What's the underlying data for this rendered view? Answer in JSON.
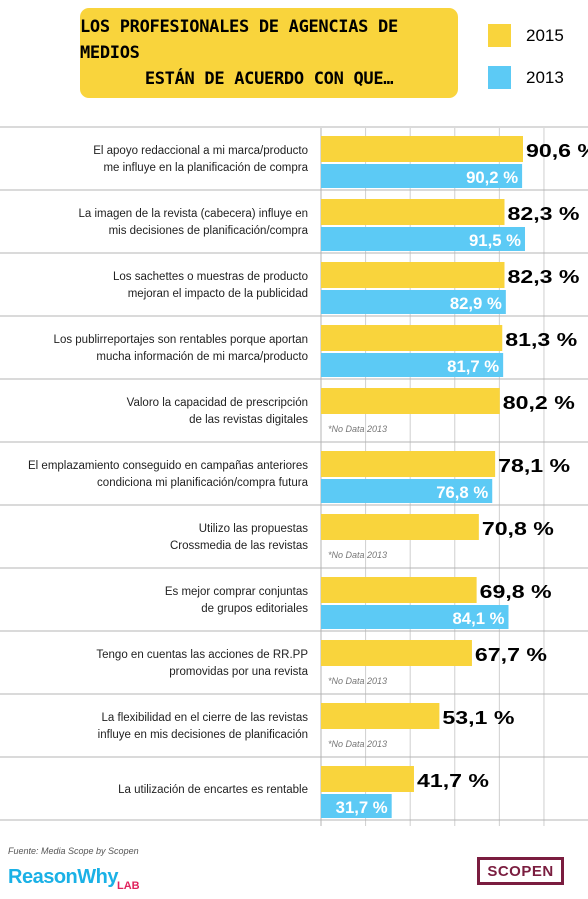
{
  "title": [
    "LOS PROFESIONALES DE AGENCIAS DE MEDIOS",
    "ESTÁN DE ACUERDO CON QUE…"
  ],
  "legend": [
    {
      "label": "2015",
      "color": "#f9d43c"
    },
    {
      "label": "2013",
      "color": "#5ccaf5"
    }
  ],
  "colors": {
    "bar_2015": "#f9d43c",
    "bar_2013": "#5ccaf5",
    "separator": "#b4b4b4",
    "grid": "#cfcfcf"
  },
  "chart_data": {
    "type": "bar",
    "orientation": "horizontal",
    "categories": [
      [
        "El apoyo redaccional a mi marca/producto",
        "me influye en la planificación de compra"
      ],
      [
        "La imagen de la revista (cabecera) influye en",
        "mis decisiones de planificación/compra"
      ],
      [
        "Los sachettes o muestras de producto",
        "mejoran el impacto de la publicidad"
      ],
      [
        "Los publirreportajes son rentables porque aportan",
        "mucha información de mi marca/producto"
      ],
      [
        "Valoro la capacidad de prescripción",
        "de las revistas digitales"
      ],
      [
        "El emplazamiento conseguido en campañas anteriores",
        "condiciona mi planificación/compra futura"
      ],
      [
        "Utilizo las propuestas",
        "Crossmedia de las revistas"
      ],
      [
        "Es mejor comprar conjuntas",
        "de grupos editoriales"
      ],
      [
        "Tengo en cuentas las acciones de RR.PP",
        "promovidas por una revista"
      ],
      [
        "La flexibilidad en el cierre de las revistas",
        "influye en mis decisiones de planificación"
      ],
      [
        "La utilización de encartes es rentable"
      ]
    ],
    "series": [
      {
        "name": "2015",
        "values": [
          90.6,
          82.3,
          82.3,
          81.3,
          80.2,
          78.1,
          70.8,
          69.8,
          67.7,
          53.1,
          41.7
        ],
        "labels": [
          "90,6 %",
          "82,3 %",
          "82,3 %",
          "81,3 %",
          "80,2 %",
          "78,1 %",
          "70,8 %",
          "69,8 %",
          "67,7 %",
          "53,1 %",
          "41,7 %"
        ]
      },
      {
        "name": "2013",
        "values": [
          90.2,
          91.5,
          82.9,
          81.7,
          null,
          76.8,
          null,
          84.1,
          null,
          null,
          31.7
        ],
        "labels": [
          "90,2 %",
          "91,5 %",
          "82,9 %",
          "81,7 %",
          "*No Data 2013",
          "76,8 %",
          "*No Data 2013",
          "84,1 %",
          "*No Data 2013",
          "*No Data 2013",
          "31,7 %"
        ]
      }
    ],
    "xlim": [
      0,
      100
    ],
    "grid": true
  },
  "footer": {
    "source": "Fuente: Media Scope by Scopen",
    "logo_left": "ReasonWhy",
    "logo_left_suffix": "LAB",
    "logo_right": "SCOPEN"
  }
}
